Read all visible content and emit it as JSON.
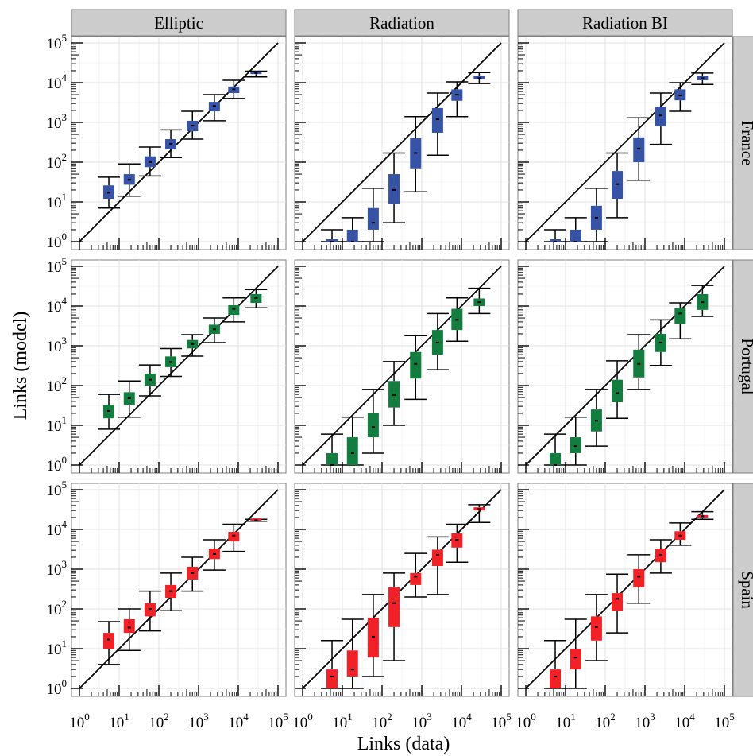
{
  "chart_data": {
    "type": "boxplot",
    "xlabel": "Links (data)",
    "ylabel": "Links (model)",
    "x_scale": "log10",
    "y_scale": "log10",
    "xlim": [
      1,
      100000
    ],
    "ylim": [
      1,
      100000
    ],
    "x_ticks": [
      1,
      10,
      100,
      1000,
      10000,
      100000
    ],
    "y_ticks": [
      1,
      10,
      100,
      1000,
      10000,
      100000
    ],
    "tick_labels": {
      "1": [
        "10",
        "0"
      ],
      "10": [
        "10",
        "1"
      ],
      "100": [
        "10",
        "2"
      ],
      "1000": [
        "10",
        "3"
      ],
      "10000": [
        "10",
        "4"
      ],
      "100000": [
        "10",
        "5"
      ]
    },
    "reference_line": "y = x",
    "grid": true,
    "columns": [
      "Elliptic",
      "Radiation",
      "Radiation BI"
    ],
    "rows": [
      "France",
      "Portugal",
      "Spain"
    ],
    "row_colors": {
      "France": "#3653a6",
      "Portugal": "#137d3f",
      "Spain": "#f02127"
    },
    "x_bins": [
      5.5,
      18,
      60,
      200,
      700,
      2500,
      7700,
      28000
    ],
    "panels": [
      {
        "row": "France",
        "column": "Elliptic",
        "bins": [
          {
            "x": 5.5,
            "min": 7,
            "q1": 12,
            "median": 17,
            "q3": 26,
            "max": 42
          },
          {
            "x": 18,
            "min": 14,
            "q1": 27,
            "median": 36,
            "q3": 50,
            "max": 90
          },
          {
            "x": 60,
            "min": 45,
            "q1": 75,
            "median": 100,
            "q3": 140,
            "max": 240
          },
          {
            "x": 200,
            "min": 130,
            "q1": 210,
            "median": 290,
            "q3": 380,
            "max": 650
          },
          {
            "x": 700,
            "min": 380,
            "q1": 600,
            "median": 830,
            "q3": 1100,
            "max": 1900
          },
          {
            "x": 2500,
            "min": 1100,
            "q1": 1900,
            "median": 2600,
            "q3": 3300,
            "max": 5000
          },
          {
            "x": 7700,
            "min": 4000,
            "q1": 5500,
            "median": 6800,
            "q3": 8000,
            "max": 11500
          },
          {
            "x": 28000,
            "min": 14000,
            "q1": 16500,
            "median": 17500,
            "q3": 18000,
            "max": 19500
          }
        ]
      },
      {
        "row": "France",
        "column": "Radiation",
        "bins": [
          {
            "x": 5.5,
            "min": 1,
            "q1": 1,
            "median": 1,
            "q3": 1,
            "max": 2
          },
          {
            "x": 18,
            "min": 1,
            "q1": 1,
            "median": 1,
            "q3": 2,
            "max": 4
          },
          {
            "x": 60,
            "min": 1,
            "q1": 2,
            "median": 3,
            "q3": 7,
            "max": 22
          },
          {
            "x": 200,
            "min": 3,
            "q1": 9,
            "median": 20,
            "q3": 50,
            "max": 170
          },
          {
            "x": 700,
            "min": 18,
            "q1": 70,
            "median": 170,
            "q3": 400,
            "max": 1400
          },
          {
            "x": 2500,
            "min": 150,
            "q1": 550,
            "median": 1200,
            "q3": 2300,
            "max": 5500
          },
          {
            "x": 7700,
            "min": 1400,
            "q1": 3500,
            "median": 5000,
            "q3": 6800,
            "max": 10500
          },
          {
            "x": 28000,
            "min": 9500,
            "q1": 12000,
            "median": 13000,
            "q3": 14500,
            "max": 18000
          }
        ]
      },
      {
        "row": "France",
        "column": "Radiation BI",
        "bins": [
          {
            "x": 5.5,
            "min": 1,
            "q1": 1,
            "median": 1,
            "q3": 1,
            "max": 2
          },
          {
            "x": 18,
            "min": 1,
            "q1": 1,
            "median": 1,
            "q3": 2,
            "max": 4
          },
          {
            "x": 60,
            "min": 1,
            "q1": 2,
            "median": 4,
            "q3": 8,
            "max": 22
          },
          {
            "x": 200,
            "min": 4,
            "q1": 12,
            "median": 28,
            "q3": 60,
            "max": 170
          },
          {
            "x": 700,
            "min": 35,
            "q1": 100,
            "median": 220,
            "q3": 420,
            "max": 1300
          },
          {
            "x": 2500,
            "min": 280,
            "q1": 800,
            "median": 1500,
            "q3": 2500,
            "max": 5500
          },
          {
            "x": 7700,
            "min": 1900,
            "q1": 3600,
            "median": 4800,
            "q3": 6800,
            "max": 10000
          },
          {
            "x": 28000,
            "min": 9000,
            "q1": 11500,
            "median": 13000,
            "q3": 14500,
            "max": 17500
          }
        ]
      },
      {
        "row": "Portugal",
        "column": "Elliptic",
        "bins": [
          {
            "x": 5.5,
            "min": 8,
            "q1": 15,
            "median": 23,
            "q3": 33,
            "max": 60
          },
          {
            "x": 18,
            "min": 16,
            "q1": 33,
            "median": 48,
            "q3": 68,
            "max": 130
          },
          {
            "x": 60,
            "min": 55,
            "q1": 100,
            "median": 140,
            "q3": 200,
            "max": 330
          },
          {
            "x": 200,
            "min": 170,
            "q1": 290,
            "median": 390,
            "q3": 540,
            "max": 850
          },
          {
            "x": 700,
            "min": 550,
            "q1": 860,
            "median": 1100,
            "q3": 1400,
            "max": 1900
          },
          {
            "x": 2500,
            "min": 1200,
            "q1": 2000,
            "median": 2600,
            "q3": 3400,
            "max": 5000
          },
          {
            "x": 7700,
            "min": 4000,
            "q1": 6000,
            "median": 8500,
            "q3": 10500,
            "max": 16000
          },
          {
            "x": 28000,
            "min": 9000,
            "q1": 12000,
            "median": 16000,
            "q3": 20000,
            "max": 26000
          }
        ]
      },
      {
        "row": "Portugal",
        "column": "Radiation",
        "bins": [
          {
            "x": 5.5,
            "min": 1,
            "q1": 1,
            "median": 1,
            "q3": 2,
            "max": 6
          },
          {
            "x": 18,
            "min": 1,
            "q1": 1,
            "median": 2,
            "q3": 5,
            "max": 16
          },
          {
            "x": 60,
            "min": 2,
            "q1": 5,
            "median": 9,
            "q3": 20,
            "max": 80
          },
          {
            "x": 200,
            "min": 10,
            "q1": 28,
            "median": 58,
            "q3": 130,
            "max": 400
          },
          {
            "x": 700,
            "min": 45,
            "q1": 150,
            "median": 350,
            "q3": 700,
            "max": 1800
          },
          {
            "x": 2500,
            "min": 250,
            "q1": 600,
            "median": 1200,
            "q3": 2500,
            "max": 6500
          },
          {
            "x": 7700,
            "min": 1300,
            "q1": 2500,
            "median": 4500,
            "q3": 8500,
            "max": 16000
          },
          {
            "x": 28000,
            "min": 6500,
            "q1": 10000,
            "median": 12500,
            "q3": 15500,
            "max": 28000
          }
        ]
      },
      {
        "row": "Portugal",
        "column": "Radiation BI",
        "bins": [
          {
            "x": 5.5,
            "min": 1,
            "q1": 1,
            "median": 1,
            "q3": 2,
            "max": 6
          },
          {
            "x": 18,
            "min": 1,
            "q1": 2,
            "median": 3,
            "q3": 5,
            "max": 16
          },
          {
            "x": 60,
            "min": 3,
            "q1": 7,
            "median": 13,
            "q3": 25,
            "max": 80
          },
          {
            "x": 200,
            "min": 15,
            "q1": 38,
            "median": 65,
            "q3": 140,
            "max": 420
          },
          {
            "x": 700,
            "min": 80,
            "q1": 160,
            "median": 350,
            "q3": 800,
            "max": 1900
          },
          {
            "x": 2500,
            "min": 320,
            "q1": 700,
            "median": 1200,
            "q3": 2000,
            "max": 4500
          },
          {
            "x": 7700,
            "min": 1500,
            "q1": 3500,
            "median": 6500,
            "q3": 9000,
            "max": 12000
          },
          {
            "x": 28000,
            "min": 5500,
            "q1": 8000,
            "median": 12500,
            "q3": 20000,
            "max": 33000
          }
        ]
      },
      {
        "row": "Spain",
        "column": "Elliptic",
        "bins": [
          {
            "x": 5.5,
            "min": 4,
            "q1": 10,
            "median": 17,
            "q3": 25,
            "max": 48
          },
          {
            "x": 18,
            "min": 9,
            "q1": 25,
            "median": 34,
            "q3": 55,
            "max": 100
          },
          {
            "x": 60,
            "min": 28,
            "q1": 65,
            "median": 100,
            "q3": 140,
            "max": 280
          },
          {
            "x": 200,
            "min": 90,
            "q1": 190,
            "median": 280,
            "q3": 400,
            "max": 800
          },
          {
            "x": 700,
            "min": 280,
            "q1": 550,
            "median": 800,
            "q3": 1150,
            "max": 2000
          },
          {
            "x": 2500,
            "min": 950,
            "q1": 1800,
            "median": 2400,
            "q3": 3300,
            "max": 5500
          },
          {
            "x": 7700,
            "min": 2800,
            "q1": 5000,
            "median": 7000,
            "q3": 8700,
            "max": 13500
          },
          {
            "x": 28000,
            "min": 16000,
            "q1": 16500,
            "median": 17000,
            "q3": 17500,
            "max": 18000
          }
        ]
      },
      {
        "row": "Spain",
        "column": "Radiation",
        "bins": [
          {
            "x": 5.5,
            "min": 1,
            "q1": 1,
            "median": 2,
            "q3": 3,
            "max": 16
          },
          {
            "x": 18,
            "min": 1,
            "q1": 2,
            "median": 3,
            "q3": 9,
            "max": 55
          },
          {
            "x": 60,
            "min": 2,
            "q1": 6,
            "median": 20,
            "q3": 60,
            "max": 230
          },
          {
            "x": 200,
            "min": 5,
            "q1": 35,
            "median": 140,
            "q3": 350,
            "max": 800
          },
          {
            "x": 700,
            "min": 200,
            "q1": 400,
            "median": 650,
            "q3": 800,
            "max": 2500
          },
          {
            "x": 2500,
            "min": 230,
            "q1": 1200,
            "median": 2300,
            "q3": 3100,
            "max": 6500
          },
          {
            "x": 7700,
            "min": 1500,
            "q1": 3500,
            "median": 5500,
            "q3": 8000,
            "max": 13500
          },
          {
            "x": 28000,
            "min": 15000,
            "q1": 30000,
            "median": 33000,
            "q3": 36000,
            "max": 42000
          }
        ]
      },
      {
        "row": "Spain",
        "column": "Radiation BI",
        "bins": [
          {
            "x": 5.5,
            "min": 1,
            "q1": 1,
            "median": 2,
            "q3": 3,
            "max": 16
          },
          {
            "x": 18,
            "min": 1,
            "q1": 3,
            "median": 6,
            "q3": 10,
            "max": 55
          },
          {
            "x": 60,
            "min": 5,
            "q1": 16,
            "median": 35,
            "q3": 65,
            "max": 230
          },
          {
            "x": 200,
            "min": 25,
            "q1": 90,
            "median": 180,
            "q3": 250,
            "max": 750
          },
          {
            "x": 700,
            "min": 140,
            "q1": 350,
            "median": 650,
            "q3": 1000,
            "max": 2300
          },
          {
            "x": 2500,
            "min": 800,
            "q1": 1500,
            "median": 2300,
            "q3": 3300,
            "max": 5500
          },
          {
            "x": 7700,
            "min": 4000,
            "q1": 5500,
            "median": 7000,
            "q3": 9000,
            "max": 14500
          },
          {
            "x": 28000,
            "min": 18000,
            "q1": 20000,
            "median": 21500,
            "q3": 23000,
            "max": 28000
          }
        ]
      }
    ]
  }
}
